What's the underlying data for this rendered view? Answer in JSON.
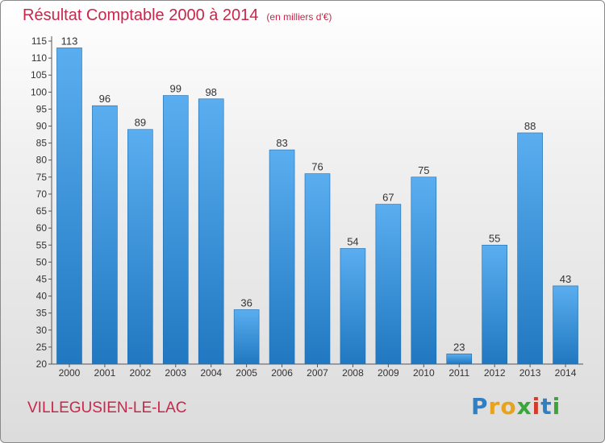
{
  "title": {
    "main": "Résultat Comptable 2000 à 2014",
    "unit": "(en milliers d'€)"
  },
  "commune": "VILLEGUSIEN-LE-LAC",
  "brand": {
    "letters": [
      "P",
      "r",
      "o",
      "x",
      "i",
      "t",
      "i"
    ],
    "colors": [
      "#2f7fc4",
      "#e8a21b",
      "#e8a21b",
      "#3aa63a",
      "#d83a2a",
      "#2f7fc4",
      "#3aa63a"
    ]
  },
  "colors": {
    "bar_light": "#5aaef0",
    "bar_dark": "#2178c0",
    "title": "#c8264a"
  },
  "chart_data": {
    "type": "bar",
    "title": "Résultat Comptable 2000 à 2014",
    "xlabel": "",
    "ylabel": "(en milliers d'€)",
    "categories": [
      "2000",
      "2001",
      "2002",
      "2003",
      "2004",
      "2005",
      "2006",
      "2007",
      "2008",
      "2009",
      "2010",
      "2011",
      "2012",
      "2013",
      "2014"
    ],
    "values": [
      113,
      96,
      89,
      99,
      98,
      36,
      83,
      76,
      54,
      67,
      75,
      23,
      55,
      88,
      43
    ],
    "ylim": [
      20,
      115
    ],
    "yticks": [
      20,
      25,
      30,
      35,
      40,
      45,
      50,
      55,
      60,
      65,
      70,
      75,
      80,
      85,
      90,
      95,
      100,
      105,
      110,
      115
    ],
    "grid": false
  }
}
